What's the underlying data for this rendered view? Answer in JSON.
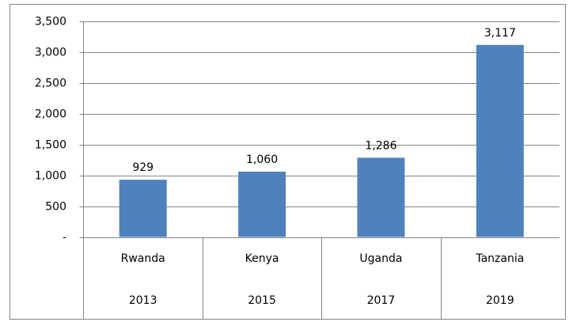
{
  "chart_data": {
    "type": "bar",
    "categories": [
      "Rwanda",
      "Kenya",
      "Uganda",
      "Tanzania"
    ],
    "category_years": [
      "2013",
      "2015",
      "2017",
      "2019"
    ],
    "values": [
      929,
      1060,
      1286,
      3117
    ],
    "value_labels": [
      "929",
      "1,060",
      "1,286",
      "3,117"
    ],
    "color": "#4f81bd",
    "ylim": [
      0,
      3500
    ],
    "yticks": [
      {
        "value": 0,
        "label": "-"
      },
      500,
      {
        "value": 1000,
        "label": "1,000"
      },
      {
        "value": 1500,
        "label": "1,500"
      },
      {
        "value": 2000,
        "label": "2,000"
      },
      {
        "value": 2500,
        "label": "2,500"
      },
      {
        "value": 3000,
        "label": "3,000"
      },
      {
        "value": 3500,
        "label": "3,500"
      }
    ],
    "grid": true
  }
}
